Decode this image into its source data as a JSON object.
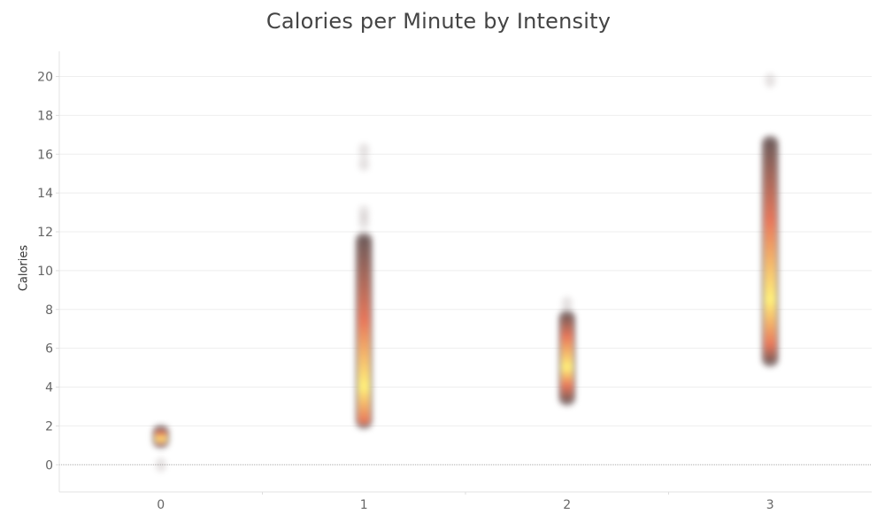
{
  "chart_data": {
    "type": "heatmap",
    "title": "Calories per Minute by Intensity",
    "xlabel": "",
    "ylabel": "Calories",
    "categories": [
      "0",
      "1",
      "2",
      "3"
    ],
    "x": [
      0,
      1,
      2,
      3
    ],
    "ylim": [
      -1.4,
      21.3
    ],
    "yticks": [
      0,
      2,
      4,
      6,
      8,
      10,
      12,
      14,
      16,
      18,
      20
    ],
    "grid": true,
    "series": [
      {
        "x": 0,
        "y_min": 1.0,
        "y_max": 1.9,
        "peak": 1.3,
        "outliers": [
          0.0
        ]
      },
      {
        "x": 1,
        "y_min": 2.0,
        "y_max": 11.8,
        "peak": 4.0,
        "outliers": [
          12.5,
          13.0,
          15.5,
          16.2
        ]
      },
      {
        "x": 2,
        "y_min": 3.2,
        "y_max": 7.8,
        "peak": 5.0,
        "outliers": [
          8.3
        ]
      },
      {
        "x": 3,
        "y_min": 5.2,
        "y_max": 16.8,
        "peak": 8.5,
        "outliers": [
          19.8
        ]
      }
    ],
    "colors": {
      "low_density": "#6b5a5a",
      "mid_density": "#e8775a",
      "high_density": "#fff07a",
      "gridline": "#eeeeee",
      "zero_line": "#aaaaaa"
    }
  }
}
